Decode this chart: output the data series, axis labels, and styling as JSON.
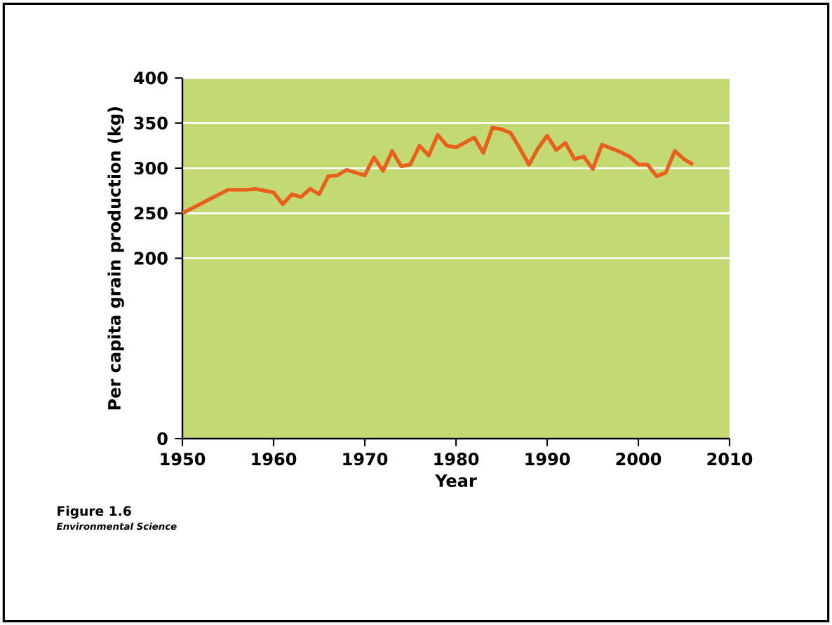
{
  "chart_data": {
    "type": "line",
    "xlabel": "Year",
    "ylabel": "Per capita grain production (kg)",
    "x": [
      1950,
      1955,
      1957,
      1958,
      1960,
      1961,
      1962,
      1963,
      1964,
      1965,
      1966,
      1967,
      1968,
      1970,
      1971,
      1972,
      1973,
      1974,
      1975,
      1976,
      1977,
      1978,
      1979,
      1980,
      1982,
      1983,
      1984,
      1985,
      1986,
      1987,
      1988,
      1989,
      1990,
      1991,
      1992,
      1993,
      1994,
      1995,
      1996,
      1997,
      1998,
      1999,
      2000,
      2001,
      2002,
      2003,
      2004,
      2005,
      2006
    ],
    "series": [
      {
        "color": "#e8601c",
        "values": [
          250,
          276,
          276,
          277,
          273,
          260,
          271,
          268,
          277,
          271,
          291,
          292,
          298,
          292,
          312,
          297,
          319,
          302,
          304,
          325,
          314,
          337,
          325,
          323,
          334,
          317,
          345,
          343,
          339,
          322,
          304,
          322,
          336,
          320,
          328,
          310,
          313,
          299,
          326,
          322,
          318,
          313,
          304,
          304,
          291,
          295,
          319,
          310,
          304
        ]
      }
    ],
    "xlim": [
      1950,
      2010
    ],
    "xticks": [
      1950,
      1960,
      1970,
      1980,
      1990,
      2000,
      2010
    ],
    "ylim": [
      0,
      400
    ],
    "yticks": [
      0,
      200,
      250,
      300,
      350,
      400
    ],
    "grid": "y",
    "line_style": "solid",
    "marker": "none",
    "annotations": [
      "Figure 1.6",
      "*Environmental Science*"
    ]
  }
}
